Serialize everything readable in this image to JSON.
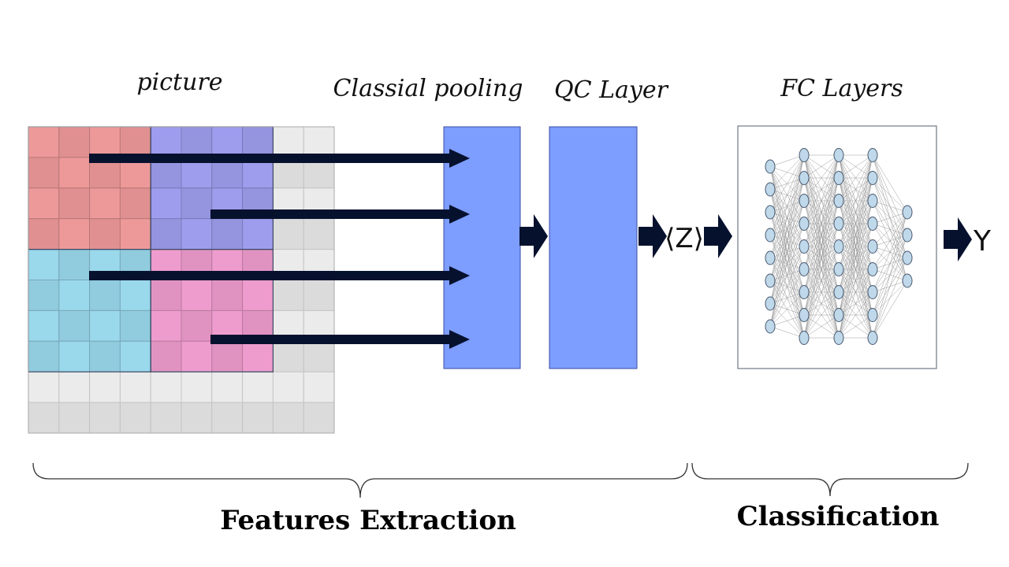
{
  "labels": {
    "picture": "picture",
    "pooling": "Classial pooling",
    "qc_layer": "QC Layer",
    "fc_layers": "FC Layers",
    "z_output": "⟨Z⟩",
    "y_output": "Y",
    "features": "Features Extraction",
    "classification": "Classification"
  },
  "colors": {
    "red_region": "#ee9999",
    "purple_region": "#9e9ded",
    "cyan_region": "#9ad8ec",
    "pink_region": "#ee9ccd",
    "gray_region": "#ebebeb",
    "layer_block": "#7d9dff",
    "arrow": "#06112e"
  },
  "network": {
    "layer_sizes": [
      8,
      9,
      9,
      9,
      4
    ]
  }
}
